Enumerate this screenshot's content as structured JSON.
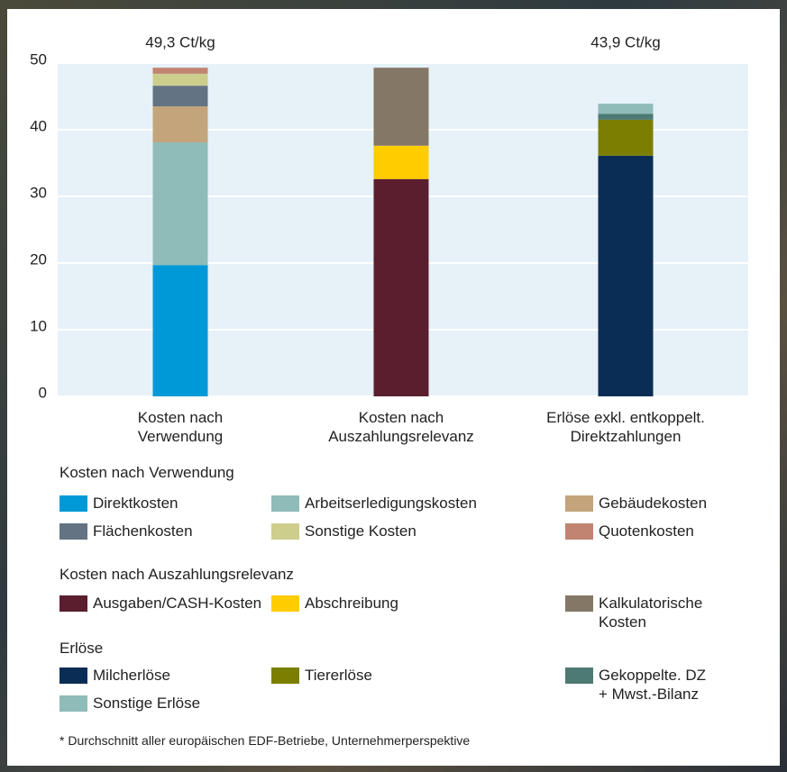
{
  "chart_data": {
    "type": "stacked-bar",
    "categories": [
      "Kosten nach\nVerwendung",
      "Kosten nach\nAuszahlungsrelevanz",
      "Erlöse exkl. entkoppelt.\nDirektzahlungen"
    ],
    "ylim": [
      0,
      50
    ],
    "yticks": [
      0,
      10,
      20,
      30,
      40,
      50
    ],
    "grid": true,
    "totals": {
      "values": [
        49.3,
        null,
        43.9
      ],
      "value_labels": [
        "49,3 Ct/kg",
        null,
        "43,9 Ct/kg"
      ]
    },
    "series_groups": [
      {
        "title": "Kosten nach Verwendung",
        "series": [
          {
            "name": "Direktkosten",
            "color": "#0099d8",
            "values": [
              19.7,
              null,
              null
            ]
          },
          {
            "name": "Arbeitserledigungskosten",
            "color": "#8fbcb8",
            "values": [
              18.4,
              null,
              null
            ]
          },
          {
            "name": "Gebäudekosten",
            "color": "#c4a47a",
            "values": [
              5.4,
              null,
              null
            ]
          },
          {
            "name": "Flächenkosten",
            "color": "#637383",
            "values": [
              3.1,
              null,
              null
            ]
          },
          {
            "name": "Sonstige Kosten",
            "color": "#cdcd8c",
            "values": [
              1.8,
              null,
              null
            ]
          },
          {
            "name": "Quotenkosten",
            "color": "#c08470",
            "values": [
              0.9,
              null,
              null
            ]
          }
        ]
      },
      {
        "title": "Kosten nach Auszahlungsrelevanz",
        "series": [
          {
            "name": "Ausgaben/CASH-Kosten",
            "color": "#5a1e2e",
            "values": [
              null,
              32.6,
              null
            ]
          },
          {
            "name": "Abschreibung",
            "color": "#ffcc00",
            "values": [
              null,
              5.0,
              null
            ]
          },
          {
            "name": "Kalkulatorische\nKosten",
            "color": "#857766",
            "values": [
              null,
              11.7,
              null
            ]
          }
        ]
      },
      {
        "title": "Erlöse",
        "series": [
          {
            "name": "Milcherlöse",
            "color": "#0a2d55",
            "values": [
              null,
              null,
              36.1
            ]
          },
          {
            "name": "Tiererlöse",
            "color": "#7b7e00",
            "values": [
              null,
              null,
              5.4
            ]
          },
          {
            "name": "Gekoppelte. DZ\n+ Mwst.-Bilanz",
            "color": "#4d7a72",
            "values": [
              null,
              null,
              0.9
            ]
          },
          {
            "name": "Sonstige Erlöse",
            "color": "#8fbcb8",
            "values": [
              null,
              null,
              1.5
            ]
          }
        ]
      }
    ],
    "footnote": "* Durchschnitt aller europäischen EDF-Betriebe, Unternehmerperspektive"
  }
}
